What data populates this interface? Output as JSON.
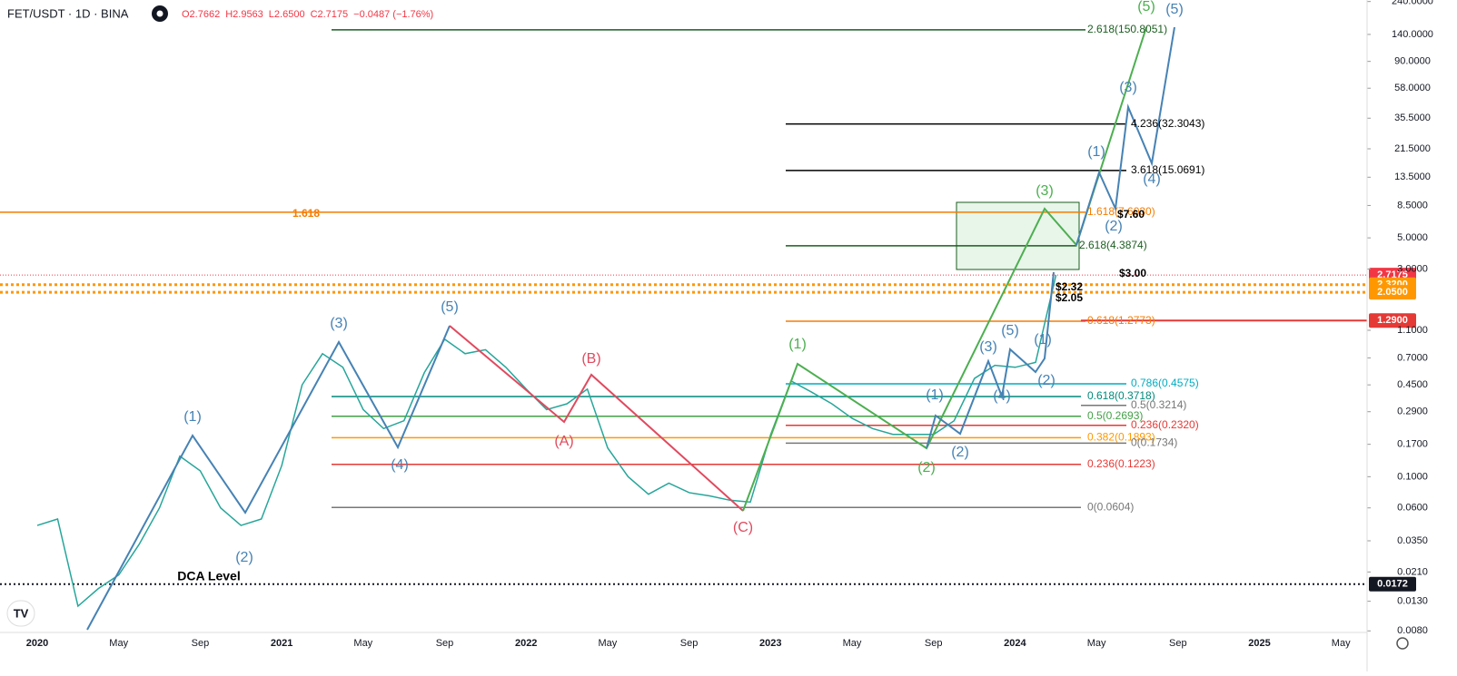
{
  "header": {
    "symbol": "FET/USDT · 1D · BINA",
    "ohlc": [
      "O2.7662",
      "H2.9563",
      "L2.6500",
      "C2.7175"
    ],
    "change": "−0.0487 (−1.76%)"
  },
  "chart_data": {
    "type": "line",
    "log_scale": true,
    "x": [
      "2020-01",
      "2020-02",
      "2020-03",
      "2020-04",
      "2020-05",
      "2020-06",
      "2020-07",
      "2020-08",
      "2020-09",
      "2020-10",
      "2020-11",
      "2020-12",
      "2021-01",
      "2021-02",
      "2021-03",
      "2021-04",
      "2021-05",
      "2021-06",
      "2021-07",
      "2021-08",
      "2021-09",
      "2021-10",
      "2021-11",
      "2021-12",
      "2022-01",
      "2022-02",
      "2022-03",
      "2022-04",
      "2022-05",
      "2022-06",
      "2022-07",
      "2022-08",
      "2022-09",
      "2022-10",
      "2022-11",
      "2022-12",
      "2023-01",
      "2023-02",
      "2023-03",
      "2023-04",
      "2023-05",
      "2023-06",
      "2023-07",
      "2023-08",
      "2023-09",
      "2023-10",
      "2023-11",
      "2023-12",
      "2024-01",
      "2024-02",
      "2024-03"
    ],
    "series": [
      {
        "color": "#26a69a",
        "values": [
          0.045,
          0.05,
          0.012,
          0.016,
          0.02,
          0.033,
          0.06,
          0.14,
          0.11,
          0.06,
          0.045,
          0.05,
          0.12,
          0.45,
          0.75,
          0.6,
          0.3,
          0.22,
          0.25,
          0.55,
          0.95,
          0.75,
          0.8,
          0.6,
          0.42,
          0.3,
          0.33,
          0.42,
          0.16,
          0.1,
          0.075,
          0.09,
          0.077,
          0.073,
          0.068,
          0.066,
          0.2,
          0.48,
          0.4,
          0.33,
          0.26,
          0.22,
          0.2,
          0.2,
          0.2,
          0.25,
          0.5,
          0.62,
          0.6,
          0.65,
          2.7175
        ]
      }
    ],
    "x_labels": [
      "2020",
      "May",
      "Sep",
      "2021",
      "May",
      "Sep",
      "2022",
      "May",
      "Sep",
      "2023",
      "May",
      "Sep",
      "2024",
      "May",
      "Sep",
      "2025",
      "May"
    ],
    "ylim": [
      0.0078,
      246
    ],
    "yticks": [
      {
        "value": 240,
        "label": "240.0000"
      },
      {
        "value": 140,
        "label": "140.0000"
      },
      {
        "value": 90,
        "label": "90.0000"
      },
      {
        "value": 58,
        "label": "58.0000"
      },
      {
        "value": 35.5,
        "label": "35.5000"
      },
      {
        "value": 21.5,
        "label": "21.5000"
      },
      {
        "value": 13.5,
        "label": "13.5000"
      },
      {
        "value": 8.5,
        "label": "8.5000"
      },
      {
        "value": 5,
        "label": "5.0000"
      },
      {
        "value": 3,
        "label": "3.0000"
      },
      {
        "value": 1.1,
        "label": "1.1000"
      },
      {
        "value": 0.7,
        "label": "0.7000"
      },
      {
        "value": 0.45,
        "label": "0.4500"
      },
      {
        "value": 0.29,
        "label": "0.2900"
      },
      {
        "value": 0.17,
        "label": "0.1700"
      },
      {
        "value": 0.1,
        "label": "0.1000"
      },
      {
        "value": 0.06,
        "label": "0.0600"
      },
      {
        "value": 0.035,
        "label": "0.0350"
      },
      {
        "value": 0.021,
        "label": "0.0210"
      },
      {
        "value": 0.013,
        "label": "0.0130"
      },
      {
        "value": 0.008,
        "label": "0.0080"
      }
    ],
    "fib_levels": [
      {
        "label": "2.618(150.8051)",
        "value": 150.8051,
        "color": "#1b5e20"
      },
      {
        "label": "4.236(32.3043)",
        "value": 32.3043,
        "color": "#000000"
      },
      {
        "label": "3.618(15.0691)",
        "value": 15.0691,
        "color": "#000000"
      },
      {
        "label": "1.618(7.6030)",
        "value": 7.603,
        "color": "#f57c00"
      },
      {
        "label": "2.618(4.3874)",
        "value": 4.3874,
        "color": "#1b5e20"
      },
      {
        "label": "0.618(1.2773)",
        "value": 1.2773,
        "color": "#f57c00"
      },
      {
        "label": "0.786(0.4575)",
        "value": 0.4575,
        "color": "#00acc1"
      },
      {
        "label": "0.618(0.3718)",
        "value": 0.3718,
        "color": "#00897b"
      },
      {
        "label": "0.5(0.2693)",
        "value": 0.2693,
        "color": "#43a047"
      },
      {
        "label": "0.382(0.1893)",
        "value": 0.1893,
        "color": "#ff9800"
      },
      {
        "label": "0.236(0.1223)",
        "value": 0.1223,
        "color": "#e53935"
      },
      {
        "label": "0(0.0604)",
        "value": 0.0604,
        "color": "#777777"
      },
      {
        "label": "0.236(0.2320)",
        "value": 0.232,
        "color": "#e53935"
      },
      {
        "label": "0(0.1734)",
        "value": 0.1734,
        "color": "#777777"
      },
      {
        "label": "0.5(0.3214)",
        "value": 0.3214,
        "color": "#777777"
      }
    ],
    "price_lines": [
      {
        "value": 2.7175,
        "label": "2.7175",
        "color": "#f23645"
      },
      {
        "value": 2.32,
        "label": "2.3200",
        "color": "#ff9800"
      },
      {
        "value": 2.05,
        "label": "2.0500",
        "color": "#ff9800"
      },
      {
        "value": 1.29,
        "label": "1.2900",
        "color": "#e53935"
      },
      {
        "value": 0.0172,
        "label": "0.0172",
        "color": "#131722"
      }
    ],
    "annotations": [
      "1.618",
      "DCA Level",
      "$7.60",
      "$3.00",
      "$2.32",
      "$2.05"
    ],
    "wave_labels": [
      "(1)",
      "(2)",
      "(3)",
      "(4)",
      "(5)",
      "(A)",
      "(B)",
      "(C)",
      "(1)",
      "(2)",
      "(3)",
      "(5)",
      "(1)",
      "(2)",
      "(3)",
      "(4)",
      "(5)",
      "(1)",
      "(2)",
      "(3)",
      "(4)",
      "(5)",
      "(1)",
      "(2)"
    ]
  }
}
